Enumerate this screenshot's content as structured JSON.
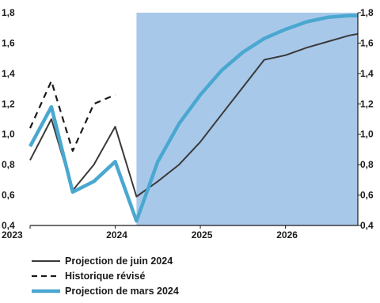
{
  "chart_data": {
    "type": "line",
    "title": "",
    "xlabel": "",
    "ylabel": "",
    "ylim": [
      0.4,
      1.8
    ],
    "xlim": [
      2023,
      2026.85
    ],
    "x_ticks": [
      2023,
      2024,
      2025,
      2026
    ],
    "x_tick_labels": [
      "2023",
      "2024",
      "2025",
      "2026"
    ],
    "y_ticks": [
      0.4,
      0.6,
      0.8,
      1.0,
      1.2,
      1.4,
      1.6,
      1.8
    ],
    "y_tick_labels_left": [
      "0,4",
      "0,6",
      "0,8",
      "1,0",
      "1,2",
      "1,4",
      "1,6",
      "1,8"
    ],
    "y_tick_labels_right": [
      "0,4",
      "0,6",
      "0,8",
      "1,0",
      "1,2",
      "1,4",
      "1,6",
      "1,8"
    ],
    "shaded_region": {
      "from": 2024.25,
      "to": 2026.85,
      "color": "#a8c8ea"
    },
    "grid": false,
    "legend_position": "bottom-left",
    "series": [
      {
        "name": "Projection de juin 2024",
        "style": "solid",
        "color": "#3a3a3a",
        "x": [
          2023.0,
          2023.25,
          2023.5,
          2023.75,
          2024.0,
          2024.25,
          2024.5,
          2024.75,
          2025.0,
          2025.25,
          2025.5,
          2025.75,
          2026.0,
          2026.25,
          2026.5,
          2026.75,
          2026.85
        ],
        "y": [
          0.83,
          1.1,
          0.63,
          0.8,
          1.05,
          0.59,
          0.69,
          0.8,
          0.95,
          1.13,
          1.31,
          1.49,
          1.52,
          1.57,
          1.61,
          1.65,
          1.66
        ]
      },
      {
        "name": "Historique révisé",
        "style": "dashed",
        "color": "#1a1a1a",
        "x": [
          2023.0,
          2023.25,
          2023.5,
          2023.75,
          2024.0
        ],
        "y": [
          1.04,
          1.35,
          0.89,
          1.2,
          1.26
        ]
      },
      {
        "name": "Projection de mars 2024",
        "style": "solid",
        "color": "#4aa8d0",
        "x": [
          2023.0,
          2023.25,
          2023.5,
          2023.75,
          2024.0,
          2024.25,
          2024.5,
          2024.75,
          2025.0,
          2025.25,
          2025.5,
          2025.75,
          2026.0,
          2026.25,
          2026.5,
          2026.75,
          2026.85
        ],
        "y": [
          0.92,
          1.18,
          0.62,
          0.69,
          0.82,
          0.43,
          0.82,
          1.07,
          1.26,
          1.42,
          1.54,
          1.63,
          1.69,
          1.74,
          1.77,
          1.78,
          1.78
        ]
      }
    ]
  },
  "legend": {
    "items": [
      {
        "label": "Projection de juin 2024",
        "style": "solid",
        "color": "#3a3a3a"
      },
      {
        "label": "Historique révisé",
        "style": "dashed",
        "color": "#1a1a1a"
      },
      {
        "label": "Projection de mars 2024",
        "style": "solid",
        "color": "#4aa8d0"
      }
    ]
  }
}
